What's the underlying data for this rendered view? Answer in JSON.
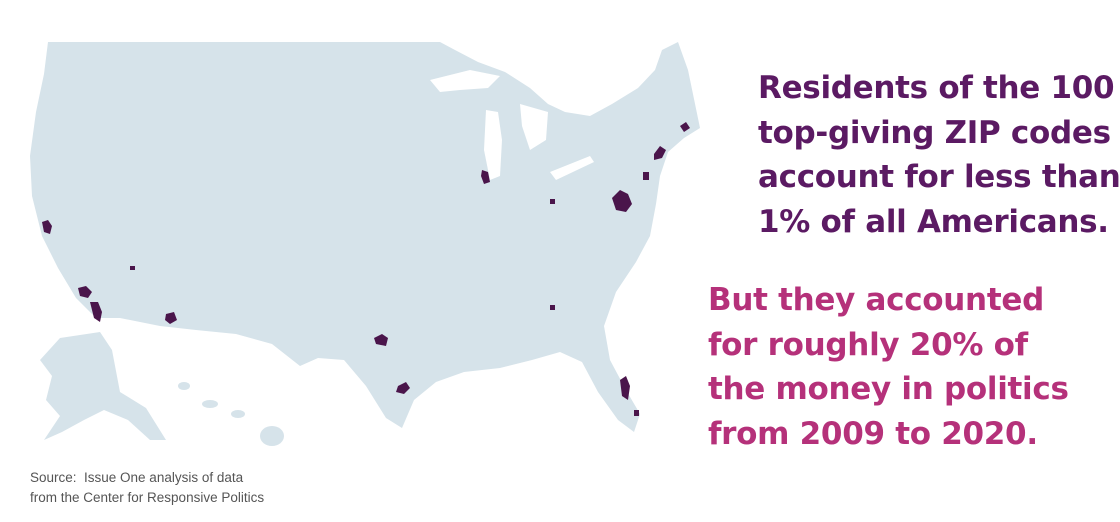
{
  "statement": {
    "lines": [
      "Residents of the 100",
      "top-giving ZIP codes",
      "account for less than",
      "1% of all Americans."
    ]
  },
  "contrast": {
    "lines": [
      "But they accounted",
      "for roughly 20% of",
      "the money in politics",
      "from 2009 to 2020."
    ]
  },
  "source": {
    "lines": [
      "Source:  Issue One analysis of data",
      "from the Center for Responsive Politics"
    ]
  }
}
